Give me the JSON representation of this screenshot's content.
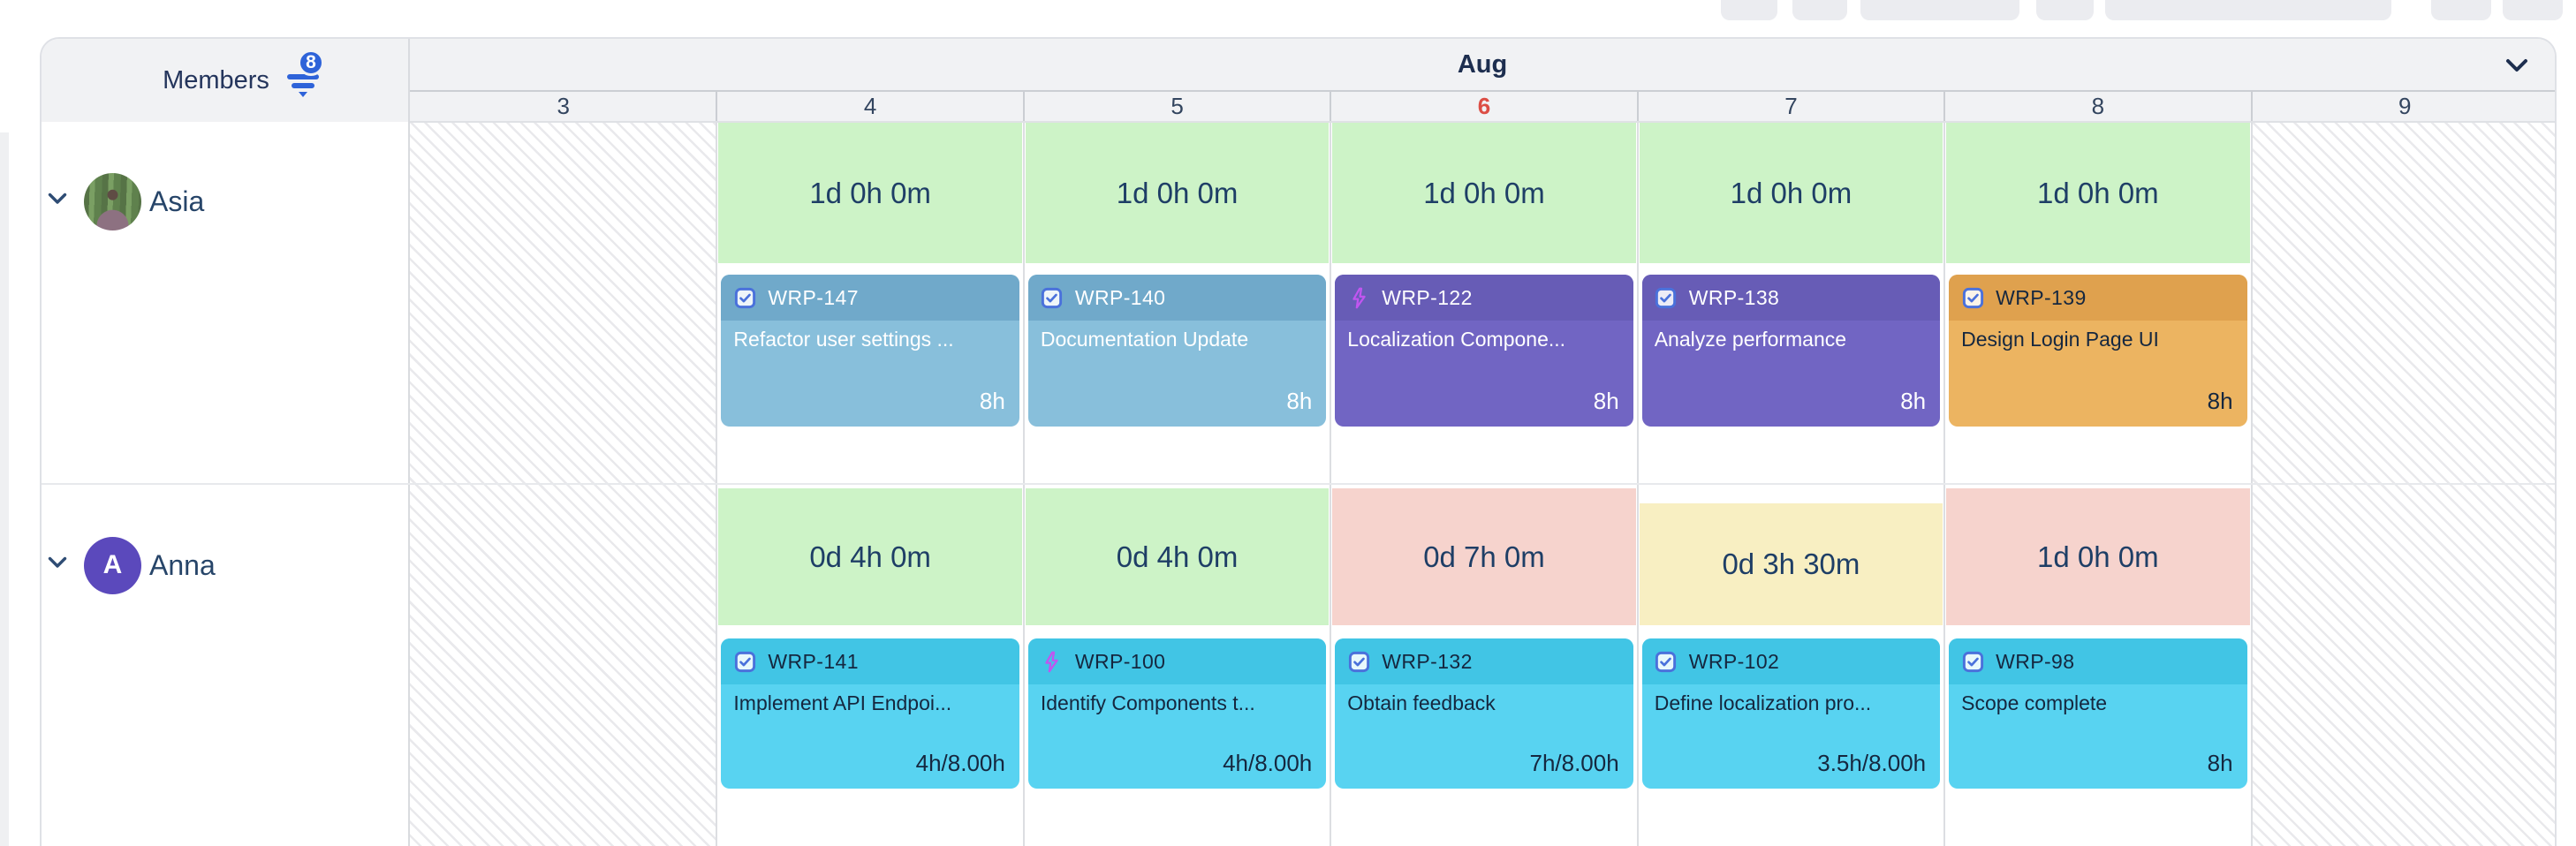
{
  "header": {
    "members_label": "Members",
    "filter_badge_count": "8",
    "month_label": "Aug"
  },
  "date_columns": [
    {
      "day": "3",
      "type": "weekend"
    },
    {
      "day": "4",
      "type": "workday"
    },
    {
      "day": "5",
      "type": "workday"
    },
    {
      "day": "6",
      "type": "today"
    },
    {
      "day": "7",
      "type": "workday"
    },
    {
      "day": "8",
      "type": "workday"
    },
    {
      "day": "9",
      "type": "weekend"
    }
  ],
  "members": [
    {
      "name": "Asia",
      "avatar": {
        "kind": "photo"
      },
      "capacities": [
        {
          "day": "4",
          "label": "1d 0h 0m",
          "status": "green"
        },
        {
          "day": "5",
          "label": "1d 0h 0m",
          "status": "green"
        },
        {
          "day": "6",
          "label": "1d 0h 0m",
          "status": "green"
        },
        {
          "day": "7",
          "label": "1d 0h 0m",
          "status": "green"
        },
        {
          "day": "8",
          "label": "1d 0h 0m",
          "status": "green"
        }
      ],
      "tasks": [
        {
          "day": "4",
          "key": "WRP-147",
          "title": "Refactor user settings ...",
          "hours": "8h",
          "color": "blue",
          "type_icon": "task-checkbox"
        },
        {
          "day": "5",
          "key": "WRP-140",
          "title": "Documentation Update",
          "hours": "8h",
          "color": "blue",
          "type_icon": "task-checkbox"
        },
        {
          "day": "6",
          "key": "WRP-122",
          "title": "Localization Compone...",
          "hours": "8h",
          "color": "purple",
          "type_icon": "lightning"
        },
        {
          "day": "7",
          "key": "WRP-138",
          "title": "Analyze performance",
          "hours": "8h",
          "color": "purple",
          "type_icon": "task-checkbox"
        },
        {
          "day": "8",
          "key": "WRP-139",
          "title": "Design Login Page UI",
          "hours": "8h",
          "color": "orange",
          "type_icon": "task-checkbox"
        }
      ]
    },
    {
      "name": "Anna",
      "avatar": {
        "kind": "initial",
        "initial": "A"
      },
      "capacities": [
        {
          "day": "4",
          "label": "0d 4h 0m",
          "status": "green"
        },
        {
          "day": "5",
          "label": "0d 4h 0m",
          "status": "green"
        },
        {
          "day": "6",
          "label": "0d 7h 0m",
          "status": "pink"
        },
        {
          "day": "7",
          "label": "0d 3h 30m",
          "status": "yellow",
          "top_offset": true
        },
        {
          "day": "8",
          "label": "1d 0h 0m",
          "status": "pink"
        }
      ],
      "tasks": [
        {
          "day": "4",
          "key": "WRP-141",
          "title": "Implement API Endpoi...",
          "hours": "4h/8.00h",
          "color": "cyan",
          "type_icon": "task-checkbox"
        },
        {
          "day": "5",
          "key": "WRP-100",
          "title": "Identify Components t...",
          "hours": "4h/8.00h",
          "color": "cyan",
          "type_icon": "lightning"
        },
        {
          "day": "6",
          "key": "WRP-132",
          "title": "Obtain feedback",
          "hours": "7h/8.00h",
          "color": "cyan",
          "type_icon": "task-checkbox"
        },
        {
          "day": "7",
          "key": "WRP-102",
          "title": "Define localization pro...",
          "hours": "3.5h/8.00h",
          "color": "cyan",
          "type_icon": "task-checkbox"
        },
        {
          "day": "8",
          "key": "WRP-98",
          "title": "Scope complete",
          "hours": "8h",
          "color": "cyan",
          "type_icon": "task-checkbox"
        }
      ]
    }
  ],
  "colors": {
    "accent_blue": "#2E63D9",
    "today_red": "#DC4E45",
    "capacity_green": "#CDF3C7",
    "capacity_pink": "#F6D3CD",
    "capacity_yellow": "#F8EFC2",
    "card_blue_header": "#70A9CA",
    "card_blue_body": "#88BFDB",
    "card_purple_header": "#675CB6",
    "card_purple_body": "#7165C3",
    "card_orange_header": "#DFA14E",
    "card_orange_body": "#ECB461",
    "card_cyan_header": "#41C5E5",
    "card_cyan_body": "#58D3F1",
    "avatar_purple": "#5B49BC",
    "checkbox_blue": "#4A71DB",
    "lightning_purple": "#C155F0"
  }
}
